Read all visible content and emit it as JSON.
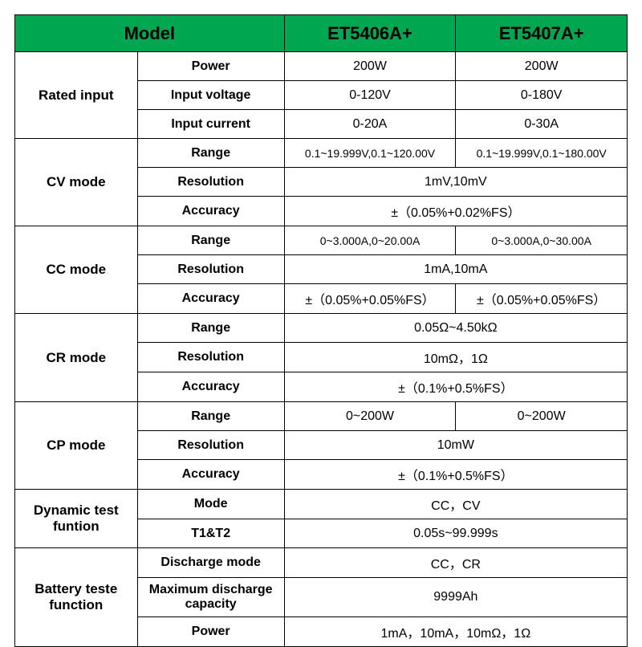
{
  "header": {
    "model": "Model",
    "col1": "ET5406A+",
    "col2": "ET5407A+"
  },
  "colors": {
    "header_bg": "#00a650",
    "border": "#000000",
    "text": "#000000",
    "bg": "#ffffff"
  },
  "rated_input": {
    "label": "Rated input",
    "power": {
      "label": "Power",
      "v1": "200W",
      "v2": "200W"
    },
    "voltage": {
      "label": "Input voltage",
      "v1": "0-120V",
      "v2": "0-180V"
    },
    "current": {
      "label": "Input current",
      "v1": "0-20A",
      "v2": "0-30A"
    }
  },
  "cv": {
    "label": "CV mode",
    "range": {
      "label": "Range",
      "v1": "0.1~19.999V,0.1~120.00V",
      "v2": "0.1~19.999V,0.1~180.00V"
    },
    "resolution": {
      "label": "Resolution",
      "merged": "1mV,10mV"
    },
    "accuracy": {
      "label": "Accuracy",
      "merged": "±（0.05%+0.02%FS）"
    }
  },
  "cc": {
    "label": "CC mode",
    "range": {
      "label": "Range",
      "v1": "0~3.000A,0~20.00A",
      "v2": "0~3.000A,0~30.00A"
    },
    "resolution": {
      "label": "Resolution",
      "merged": "1mA,10mA"
    },
    "accuracy": {
      "label": "Accuracy",
      "v1": "±（0.05%+0.05%FS）",
      "v2": "±（0.05%+0.05%FS）"
    }
  },
  "cr": {
    "label": "CR mode",
    "range": {
      "label": "Range",
      "merged": "0.05Ω~4.50kΩ"
    },
    "resolution": {
      "label": "Resolution",
      "merged": "10mΩ，1Ω"
    },
    "accuracy": {
      "label": "Accuracy",
      "merged": "±（0.1%+0.5%FS）"
    }
  },
  "cp": {
    "label": "CP mode",
    "range": {
      "label": "Range",
      "v1": "0~200W",
      "v2": "0~200W"
    },
    "resolution": {
      "label": "Resolution",
      "merged": "10mW"
    },
    "accuracy": {
      "label": "Accuracy",
      "merged": "±（0.1%+0.5%FS）"
    }
  },
  "dynamic": {
    "label": "Dynamic test funtion",
    "mode": {
      "label": "Mode",
      "merged": "CC，CV"
    },
    "t1t2": {
      "label": "T1&T2",
      "merged": "0.05s~99.999s"
    }
  },
  "battery": {
    "label": "Battery teste function",
    "discharge_mode": {
      "label": "Discharge mode",
      "merged": "CC，CR"
    },
    "max_cap": {
      "label": "Maximum discharge capacity",
      "merged": "9999Ah"
    },
    "power": {
      "label": "Power",
      "merged": "1mA，10mA，10mΩ，1Ω"
    }
  }
}
